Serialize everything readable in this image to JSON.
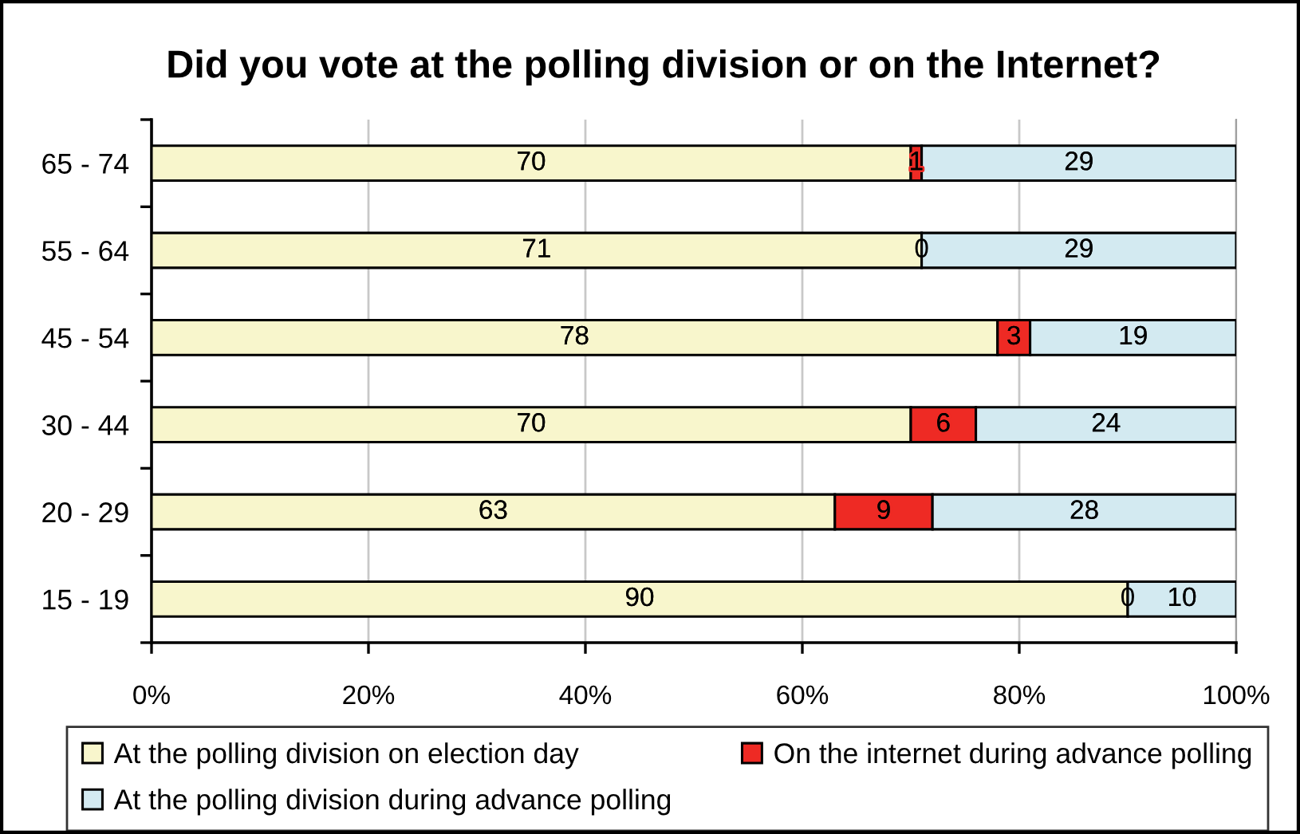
{
  "chart_data": {
    "type": "bar",
    "orientation": "horizontal",
    "stacked": true,
    "title": "Did you vote at the polling division or on the Internet?",
    "categories": [
      "65 - 74",
      "55 - 64",
      "45 - 54",
      "30 - 44",
      "20 - 29",
      "15 - 19"
    ],
    "series": [
      {
        "name": "At the polling division on election day",
        "color": "#f8f6cc",
        "values": [
          70,
          71,
          78,
          70,
          63,
          90
        ]
      },
      {
        "name": "On the internet during advance polling",
        "color": "#ee2a24",
        "values": [
          1,
          0,
          3,
          6,
          9,
          0
        ]
      },
      {
        "name": "At the polling division during advance polling",
        "color": "#d3eaf1",
        "values": [
          29,
          29,
          19,
          24,
          28,
          10
        ]
      }
    ],
    "xlim": [
      0,
      100
    ],
    "xticks": [
      {
        "value": 0,
        "label": "0%"
      },
      {
        "value": 20,
        "label": "20%"
      },
      {
        "value": 40,
        "label": "40%"
      },
      {
        "value": 60,
        "label": "60%"
      },
      {
        "value": 80,
        "label": "80%"
      },
      {
        "value": 100,
        "label": "100%"
      }
    ],
    "grid": "x",
    "legend": "bottom",
    "data_labels": true
  }
}
